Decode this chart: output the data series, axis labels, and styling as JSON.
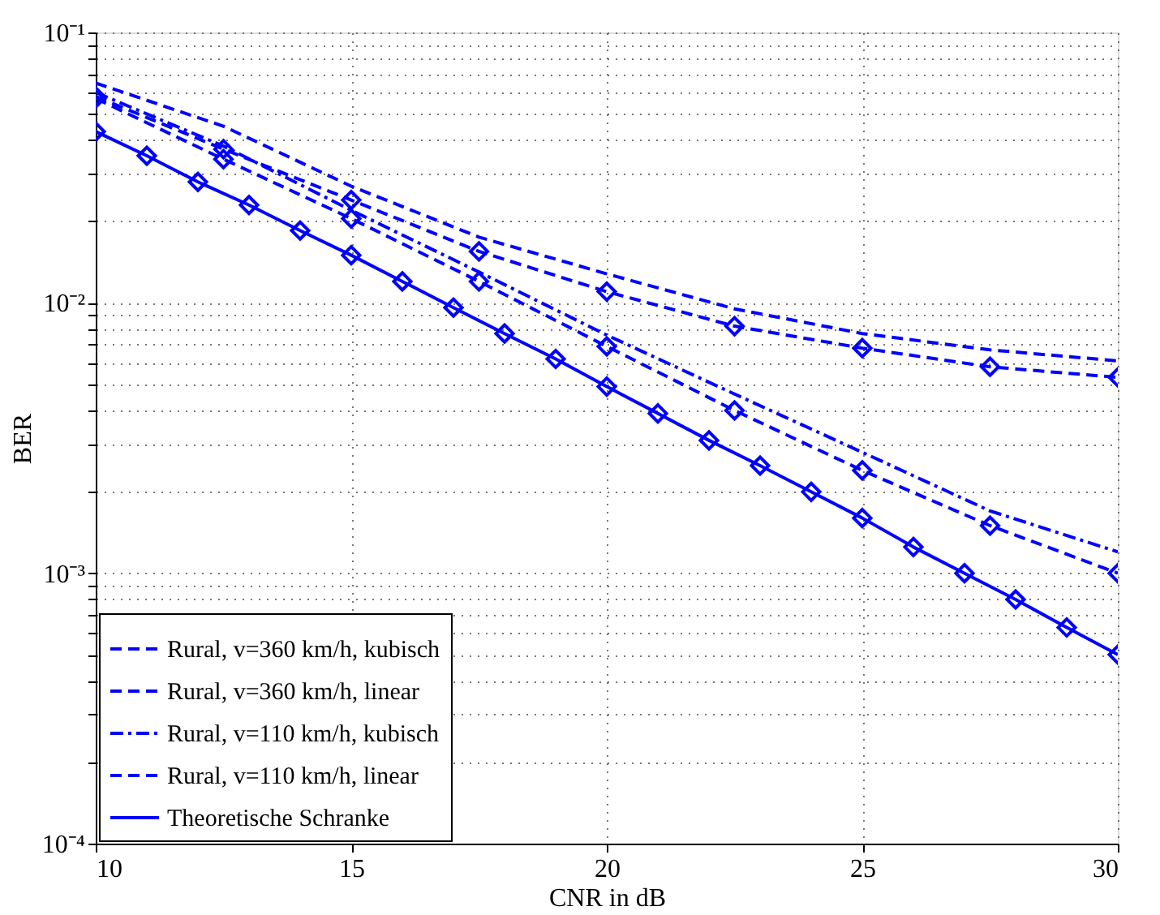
{
  "chart_data": {
    "type": "line",
    "xlabel": "CNR in dB",
    "ylabel": "BER",
    "log": "y",
    "grid": true,
    "legend": "bottom left",
    "xlim": [
      10,
      30
    ],
    "xticks": [
      10,
      15,
      20,
      25,
      30
    ],
    "ylim": [
      0.0001,
      0.1
    ],
    "yticks": [
      {
        "value": 0.0001,
        "label": "10⁻⁴"
      },
      {
        "value": 0.0002,
        "label": null
      },
      {
        "value": 0.0003,
        "label": null
      },
      {
        "value": 0.0004,
        "label": null
      },
      {
        "value": 0.0005,
        "label": null
      },
      {
        "value": 0.0006,
        "label": null
      },
      {
        "value": 0.0007,
        "label": null
      },
      {
        "value": 0.0008,
        "label": null
      },
      {
        "value": 0.0009,
        "label": null
      },
      {
        "value": 0.001,
        "label": "10⁻³"
      },
      {
        "value": 0.002,
        "label": null
      },
      {
        "value": 0.003,
        "label": null
      },
      {
        "value": 0.004,
        "label": null
      },
      {
        "value": 0.005,
        "label": null
      },
      {
        "value": 0.006,
        "label": null
      },
      {
        "value": 0.007,
        "label": null
      },
      {
        "value": 0.008,
        "label": null
      },
      {
        "value": 0.009,
        "label": null
      },
      {
        "value": 0.01,
        "label": "10⁻²"
      },
      {
        "value": 0.02,
        "label": null
      },
      {
        "value": 0.03,
        "label": null
      },
      {
        "value": 0.04,
        "label": null
      },
      {
        "value": 0.05,
        "label": null
      },
      {
        "value": 0.06,
        "label": null
      },
      {
        "value": 0.07,
        "label": null
      },
      {
        "value": 0.08,
        "label": null
      },
      {
        "value": 0.09,
        "label": null
      },
      {
        "value": 0.1,
        "label": "10⁻¹"
      }
    ],
    "series": [
      {
        "name": "Rural, v=360 km/h, kubisch",
        "color": "#0000ff",
        "line_style": "dashed",
        "marker": "none",
        "x": [
          10,
          12.5,
          15,
          17.5,
          20,
          22.5,
          25,
          27.5,
          30
        ],
        "values": [
          0.065,
          0.045,
          0.027,
          0.0175,
          0.0128,
          0.0095,
          0.0077,
          0.0067,
          0.0061
        ]
      },
      {
        "name": "Rural, v=360 km/h, linear",
        "color": "#0000ff",
        "line_style": "dashed",
        "marker": "diamond",
        "x": [
          10,
          12.5,
          15,
          17.5,
          20,
          22.5,
          25,
          27.5,
          30
        ],
        "values": [
          0.058,
          0.037,
          0.024,
          0.0155,
          0.011,
          0.0082,
          0.0068,
          0.0058,
          0.0053
        ]
      },
      {
        "name": "Rural, v=110 km/h, kubisch",
        "color": "#0000ff",
        "line_style": "dashdot",
        "marker": "none",
        "x": [
          10,
          12.5,
          15,
          17.5,
          20,
          22.5,
          25,
          27.5,
          30
        ],
        "values": [
          0.06,
          0.038,
          0.022,
          0.013,
          0.0076,
          0.0046,
          0.0028,
          0.0017,
          0.0012
        ]
      },
      {
        "name": "Rural, v=110 km/h, linear",
        "color": "#0000ff",
        "line_style": "dashed",
        "marker": "diamond",
        "x": [
          10,
          12.5,
          15,
          17.5,
          20,
          22.5,
          25,
          27.5,
          30
        ],
        "values": [
          0.057,
          0.034,
          0.0205,
          0.012,
          0.0069,
          0.004,
          0.0024,
          0.0015,
          0.001
        ]
      },
      {
        "name": "Theoretische Schranke",
        "color": "#0000ff",
        "line_style": "solid",
        "marker": "diamond",
        "x": [
          10,
          11,
          12,
          13,
          14,
          15,
          16,
          17,
          18,
          19,
          20,
          21,
          22,
          23,
          24,
          25,
          26,
          27,
          28,
          29,
          30
        ],
        "values": [
          0.043,
          0.035,
          0.028,
          0.023,
          0.0185,
          0.015,
          0.012,
          0.0096,
          0.0077,
          0.0062,
          0.0049,
          0.0039,
          0.0031,
          0.0025,
          0.002,
          0.0016,
          0.00125,
          0.001,
          0.0008,
          0.00063,
          0.0005
        ]
      }
    ]
  }
}
